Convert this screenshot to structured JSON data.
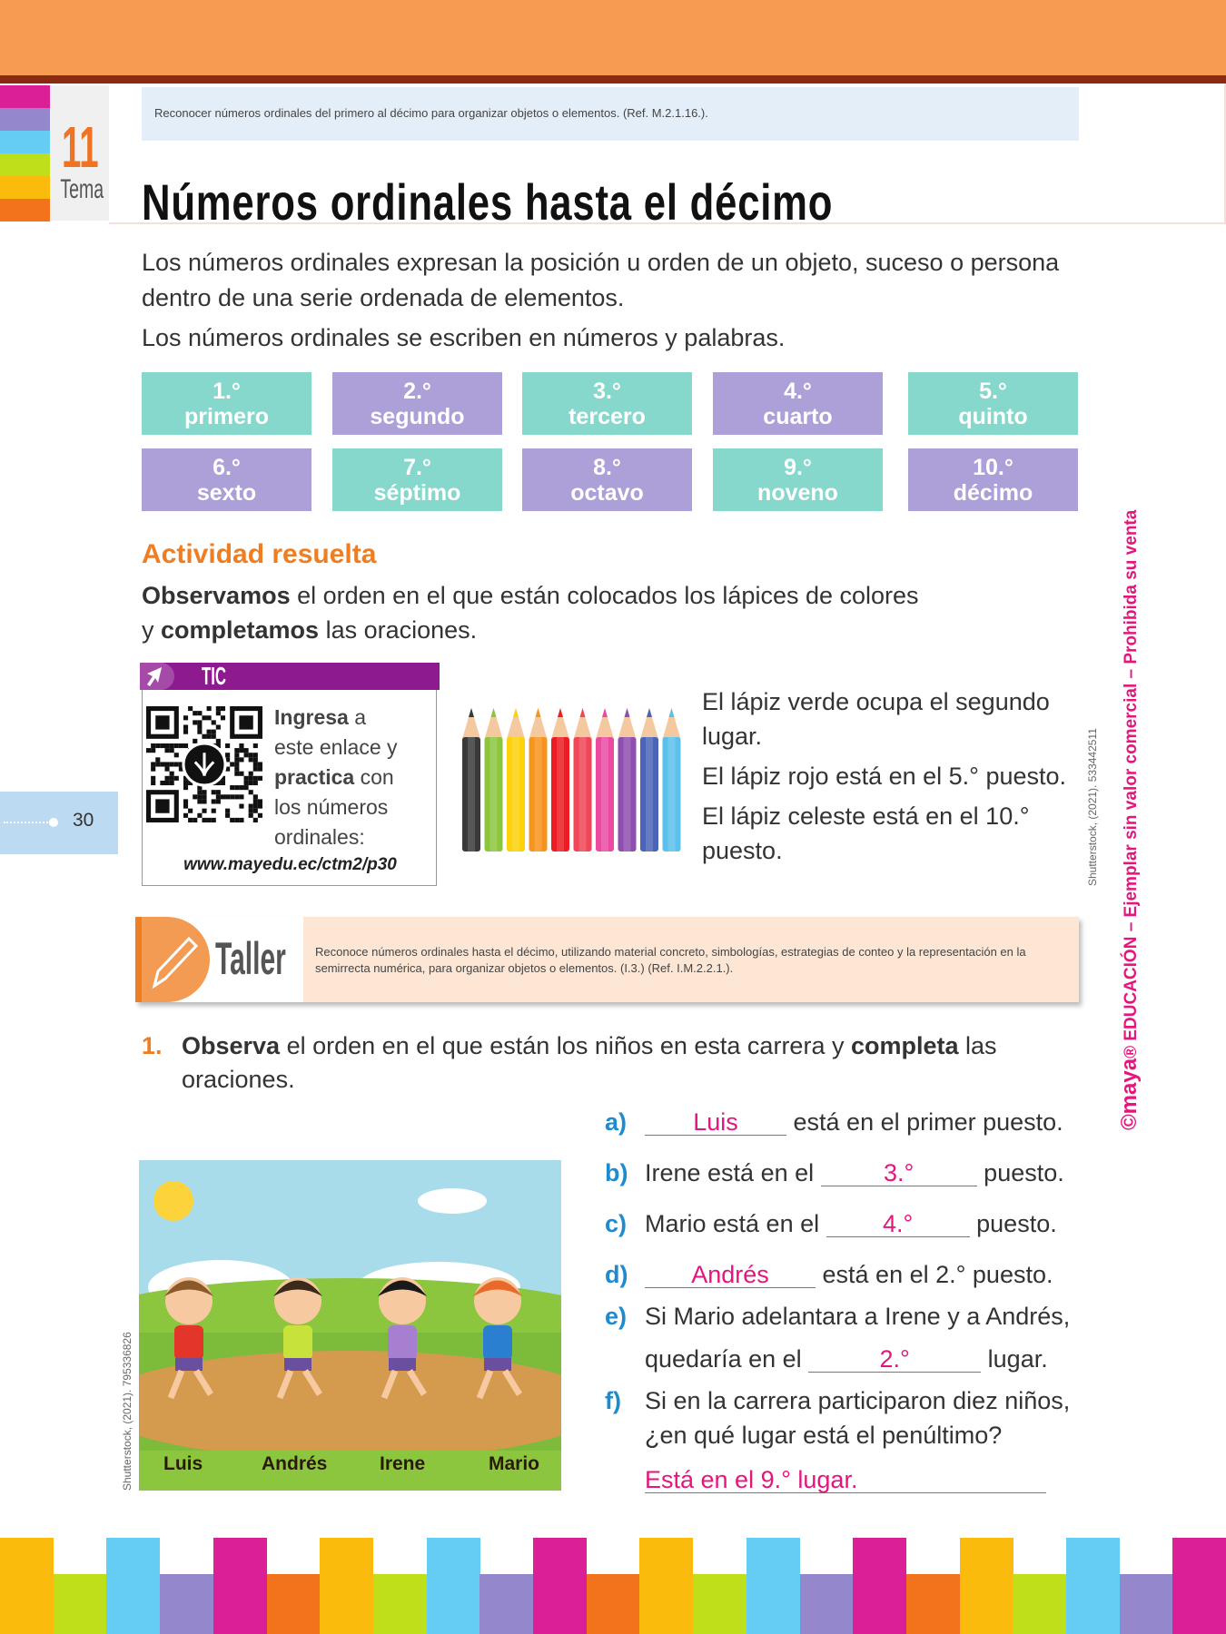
{
  "header": {
    "tema_number": "11",
    "tema_label": "Tema",
    "objective": "Reconocer números ordinales del primero al décimo para organizar objetos o elementos. (Ref. M.2.1.16.).",
    "title": "Números ordinales hasta el décimo"
  },
  "intro": {
    "line1": "Los números ordinales expresan la posición u orden de un objeto, suceso o persona",
    "line2": "dentro de una serie ordenada de elementos.",
    "line3": "Los números ordinales se escriben en números y palabras."
  },
  "ordinals": [
    {
      "num": "1.°",
      "word": "primero",
      "color": "#86d8cc"
    },
    {
      "num": "2.°",
      "word": "segundo",
      "color": "#ad9fd8"
    },
    {
      "num": "3.°",
      "word": "tercero",
      "color": "#86d8cc"
    },
    {
      "num": "4.°",
      "word": "cuarto",
      "color": "#ad9fd8"
    },
    {
      "num": "5.°",
      "word": "quinto",
      "color": "#86d8cc"
    },
    {
      "num": "6.°",
      "word": "sexto",
      "color": "#ad9fd8"
    },
    {
      "num": "7.°",
      "word": "séptimo",
      "color": "#86d8cc"
    },
    {
      "num": "8.°",
      "word": "octavo",
      "color": "#ad9fd8"
    },
    {
      "num": "9.°",
      "word": "noveno",
      "color": "#86d8cc"
    },
    {
      "num": "10.°",
      "word": "décimo",
      "color": "#ad9fd8"
    }
  ],
  "activity": {
    "heading": "Actividad resuelta",
    "l1_bold": "Observamos",
    "l1_rest": " el orden en el que están colocados los lápices de colores",
    "l2_pre": "y ",
    "l2_bold": "completamos",
    "l2_rest": " las oraciones.",
    "sentences": [
      "El lápiz verde ocupa el segundo",
      "lugar.",
      "El lápiz rojo está en el 5.° puesto.",
      "El lápiz celeste está en el 10.°",
      "puesto."
    ]
  },
  "tic": {
    "label": "TIC",
    "icon": "cursor-arrow-icon",
    "b1": "Ingresa",
    "t1": " a",
    "t2": "este enlace y",
    "b3": "practica",
    "t3": " con",
    "t4": "los números",
    "t5": "ordinales:",
    "url": "www.mayedu.ec/ctm2/p30"
  },
  "pencil_colors": [
    "#3a3a3a",
    "#8cc63f",
    "#fcd20a",
    "#f7941d",
    "#ed1c24",
    "#ef4658",
    "#ec4aa1",
    "#8e4fb0",
    "#4a65b8",
    "#5bc1ec"
  ],
  "page_number": "30",
  "credits": {
    "pencils": "Shutterstock, (2021). 533442511",
    "race": "Shutterstock, (2021). 795336826"
  },
  "watermark": {
    "brand": "©maya",
    "rest": "® EDUCACIÓN – Ejemplar sin valor comercial – Prohibida su venta"
  },
  "taller": {
    "label": "Taller",
    "text": "Reconoce números ordinales hasta el décimo,  utilizando material concreto, simbologías, estrategias de conteo y la representación en la semirrecta numérica, para organizar objetos o elementos. (I.3.) (Ref. I.M.2.2.1.)."
  },
  "exercise": {
    "number": "1.",
    "b1": "Observa",
    "t1": " el orden en el que están los niños en esta carrera y ",
    "b2": "completa",
    "t2": " las",
    "t3": "oraciones.",
    "runners": [
      "Luis",
      "Andrés",
      "Irene",
      "Mario"
    ],
    "items": {
      "a": {
        "label": "a)",
        "answer": "Luis",
        "after": "está en el primer puesto."
      },
      "b": {
        "label": "b)",
        "before": "Irene está en el",
        "answer": "3.°",
        "after": "puesto."
      },
      "c": {
        "label": "c)",
        "before": "Mario está en el",
        "answer": "4.°",
        "after": "puesto."
      },
      "d": {
        "label": "d)",
        "answer": "Andrés",
        "after": "está en el 2.° puesto."
      },
      "e": {
        "label": "e)",
        "line1": "Si Mario adelantara a Irene y a Andrés,",
        "before": "quedaría en el",
        "answer": "2.°",
        "after": "lugar."
      },
      "f": {
        "label": "f)",
        "line1": "Si en la carrera participaron diez niños,",
        "line2": "¿en qué lugar está el penúltimo?",
        "answer": "Está en el 9.° lugar."
      }
    }
  },
  "colors": {
    "accent_orange": "#ef7d22",
    "answer_magenta": "#e5157d",
    "label_blue": "#1e8bcf",
    "tic_purple": "#8d1b8f"
  }
}
